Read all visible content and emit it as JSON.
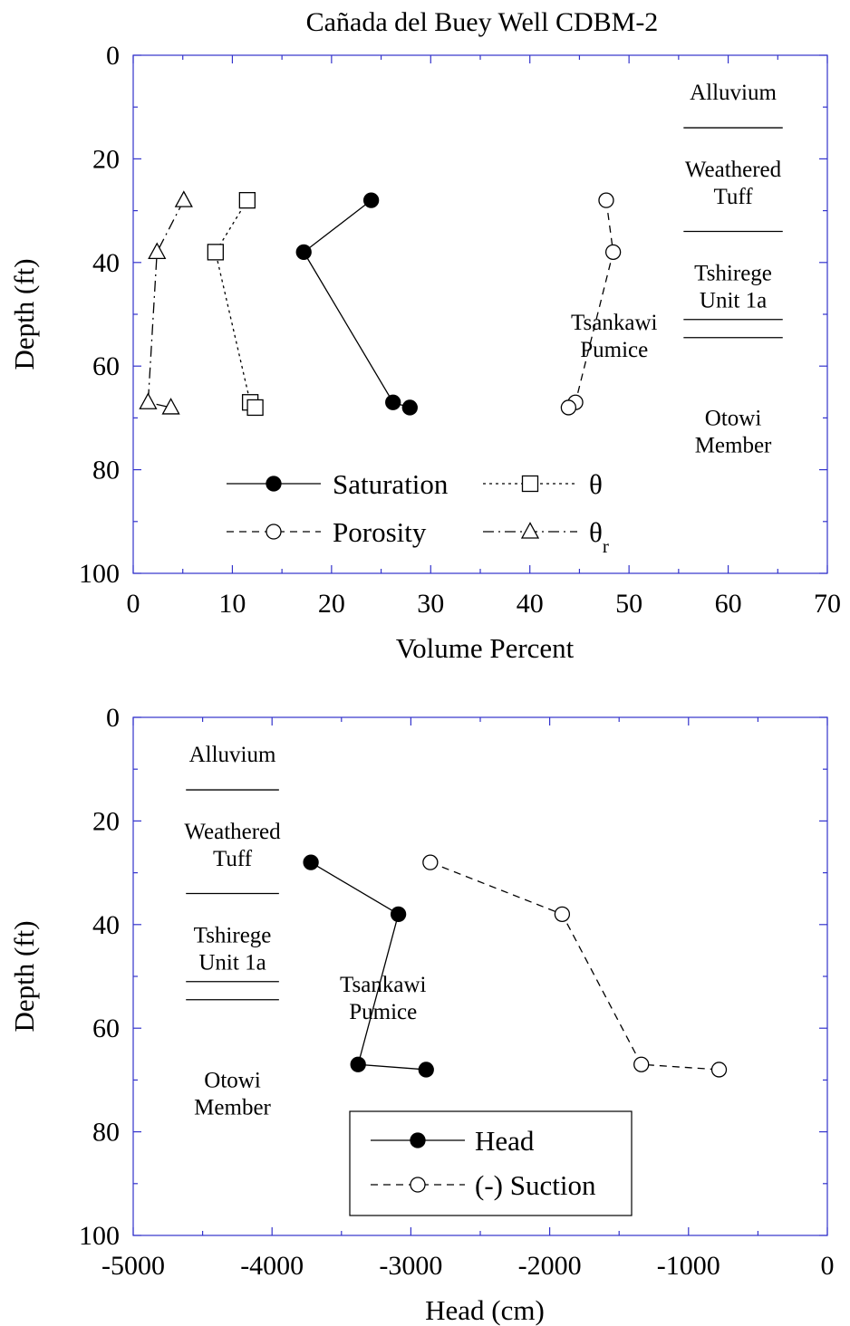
{
  "figure_title": "Cañada del Buey Well CDBM-2",
  "chart_data": [
    {
      "type": "scatter",
      "xlabel": "Volume Percent",
      "ylabel": "Depth (ft)",
      "xlim": [
        0,
        70
      ],
      "ylim": [
        100,
        0
      ],
      "x_ticks": [
        "0",
        "10",
        "20",
        "30",
        "40",
        "50",
        "60",
        "70"
      ],
      "y_ticks": [
        "0",
        "20",
        "40",
        "60",
        "80",
        "100"
      ],
      "grid": false,
      "legend_position": "bottom-center",
      "series": [
        {
          "name": "Saturation",
          "marker": "filled-circle",
          "line": "solid",
          "x": [
            24,
            17.2,
            26.2,
            27.9
          ],
          "y": [
            28,
            38,
            67,
            68
          ]
        },
        {
          "name": "θ",
          "marker": "open-square",
          "line": "dotted",
          "x": [
            11.5,
            8.3,
            11.8,
            12.3
          ],
          "y": [
            28,
            38,
            67,
            68
          ]
        },
        {
          "name": "Porosity",
          "marker": "open-circle",
          "line": "dashed",
          "x": [
            47.7,
            48.4,
            44.6,
            43.9
          ],
          "y": [
            28,
            38,
            67,
            68
          ]
        },
        {
          "name": "θ",
          "name_subscript": "r",
          "marker": "open-triangle",
          "line": "dash-dot",
          "x": [
            5.1,
            2.4,
            1.5,
            3.8
          ],
          "y": [
            28,
            38,
            67,
            68
          ]
        }
      ],
      "strata": {
        "labels": [
          {
            "lines": [
              "Alluvium"
            ],
            "depth": 7
          },
          {
            "lines": [
              "Weathered",
              "Tuff"
            ],
            "depth": 24.5
          },
          {
            "lines": [
              "Tshirege",
              "Unit 1a"
            ],
            "depth": 44.5
          },
          {
            "lines": [
              "Otowi",
              "Member"
            ],
            "depth": 72.5
          }
        ],
        "boundaries": [
          14,
          34,
          51,
          54.5
        ],
        "x_range": [
          55.5,
          65.5
        ],
        "pumice_label": {
          "lines": [
            "Tsankawi",
            "Pumice"
          ],
          "x": 48.5,
          "depth": 54
        }
      }
    },
    {
      "type": "scatter",
      "xlabel": "Head (cm)",
      "ylabel": "Depth (ft)",
      "xlim": [
        -5000,
        0
      ],
      "ylim": [
        100,
        0
      ],
      "x_ticks": [
        "-5000",
        "-4000",
        "-3000",
        "-2000",
        "-1000",
        "0"
      ],
      "y_ticks": [
        "0",
        "20",
        "40",
        "60",
        "80",
        "100"
      ],
      "grid": false,
      "legend_position": "bottom-center",
      "series": [
        {
          "name": "Head",
          "marker": "filled-circle",
          "line": "solid",
          "x": [
            -3720,
            -3090,
            -3380,
            -2890
          ],
          "y": [
            28,
            38,
            67,
            68
          ]
        },
        {
          "name": "(-) Suction",
          "marker": "open-circle",
          "line": "dashed",
          "x": [
            -2860,
            -1910,
            -1340,
            -780
          ],
          "y": [
            28,
            38,
            67,
            68
          ]
        }
      ],
      "strata": {
        "labels": [
          {
            "lines": [
              "Alluvium"
            ],
            "depth": 7
          },
          {
            "lines": [
              "Weathered",
              "Tuff"
            ],
            "depth": 24.5
          },
          {
            "lines": [
              "Tshirege",
              "Unit 1a"
            ],
            "depth": 44.5
          },
          {
            "lines": [
              "Otowi",
              "Member"
            ],
            "depth": 72.5
          }
        ],
        "boundaries": [
          14,
          34,
          51,
          54.5
        ],
        "x_range": [
          -4620,
          -3950
        ],
        "pumice_label": {
          "lines": [
            "Tsankawi",
            "Pumice"
          ],
          "x": -3200,
          "depth": 54
        }
      }
    }
  ]
}
